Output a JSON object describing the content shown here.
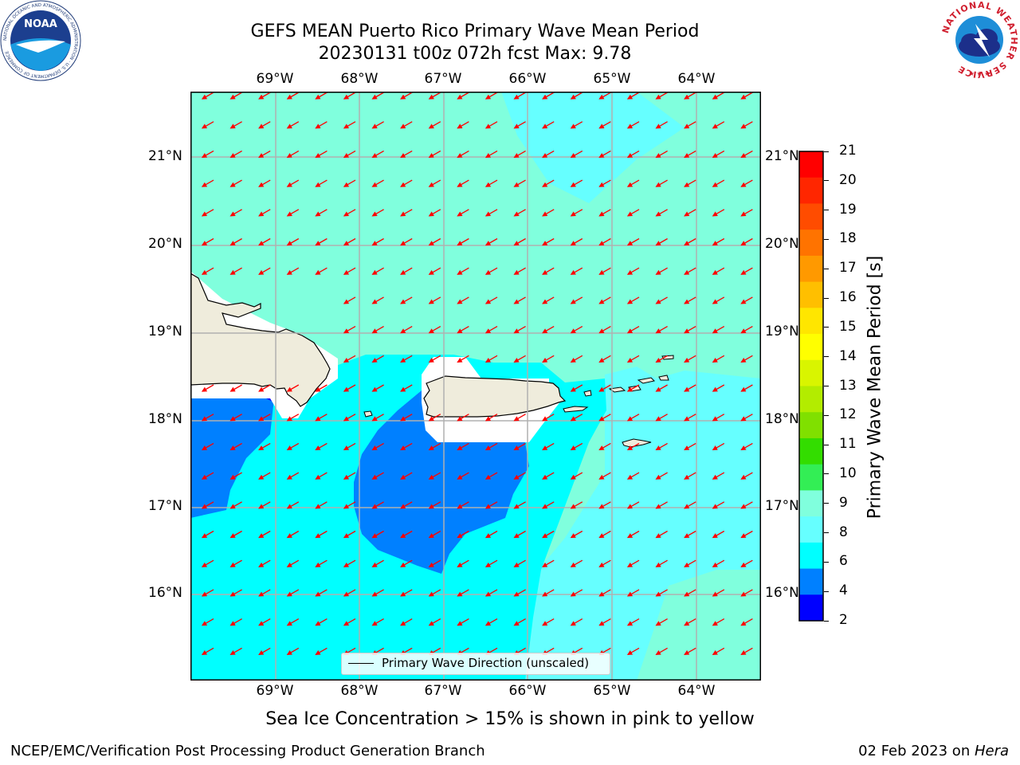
{
  "header": {
    "title_line1": "GEFS MEAN Puerto Rico Primary Wave Mean Period",
    "title_line2": "20230131 t00z 072h fcst   Max: 9.78"
  },
  "logos": {
    "left": "NOAA",
    "left_ring": "NATIONAL OCEANIC AND ATMOSPHERIC ADMINISTRATION · U.S. DEPARTMENT OF COMMERCE",
    "right": "NATIONAL WEATHER SERVICE"
  },
  "map": {
    "lon_labels": [
      "69°W",
      "68°W",
      "67°W",
      "66°W",
      "65°W",
      "64°W"
    ],
    "lat_labels": [
      "21°N",
      "20°N",
      "19°N",
      "18°N",
      "17°N",
      "16°N"
    ],
    "legend": "Primary Wave Direction (unscaled)",
    "colors": {
      "land": "#efecdc",
      "coast": "#000000",
      "arrows": "#ff0000",
      "grid": "#b0b0b0"
    }
  },
  "colorbar": {
    "label": "Primary Wave Mean Period [s]",
    "ticks": [
      "21",
      "20",
      "19",
      "18",
      "17",
      "16",
      "15",
      "14",
      "13",
      "12",
      "11",
      "10",
      "9",
      "8",
      "6",
      "4",
      "2"
    ],
    "colors_top_to_bottom": [
      "#ff0000",
      "#ff2600",
      "#ff4c00",
      "#ff7300",
      "#ff9900",
      "#ffbf00",
      "#ffe600",
      "#ffff00",
      "#d9f500",
      "#b3ec00",
      "#80e000",
      "#33dd00",
      "#33ee55",
      "#80ffdd",
      "#66ffff",
      "#00ffff",
      "#0080ff",
      "#0000ff"
    ]
  },
  "notes": {
    "sea_ice": "Sea Ice Concentration > 15% is shown in pink to yellow"
  },
  "footer": {
    "left": "NCEP/EMC/Verification Post Processing Product Generation Branch",
    "date": "02 Feb 2023 on ",
    "host": "Hera"
  }
}
